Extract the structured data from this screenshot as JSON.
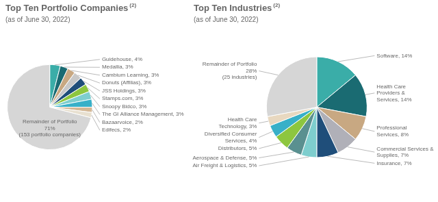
{
  "chart_data": [
    {
      "type": "pie",
      "title": "Top Ten Portfolio Companies",
      "title_superscript": "(2)",
      "subtitle": "(as of June 30, 2022)",
      "categories": [
        "Guidehouse, 4%",
        "Medallia, 3%",
        "Cambium Learning, 3%",
        "Donuts (Affilias), 3%",
        "JSS Holdings, 3%",
        "Stamps.com, 3%",
        "Snoopy Bidco, 3%",
        "The GI Alliance Management, 3%",
        "Bazaarvoice, 2%",
        "Edifecs, 2%",
        "Remainder of Portfolio\n71%\n(153 portfolio companies)"
      ],
      "values": [
        4,
        3,
        3,
        3,
        3,
        3,
        3,
        3,
        2,
        2,
        71
      ],
      "colors": [
        "#3aada8",
        "#1a6b72",
        "#c8a882",
        "#c8c8c8",
        "#1f4e7a",
        "#8dc63f",
        "#7ecece",
        "#38b0c8",
        "#d4b896",
        "#e8e0d0",
        "#d6d6d6"
      ],
      "data_labels": true
    },
    {
      "type": "pie",
      "title": "Top Ten Industries",
      "title_superscript": "(2)",
      "subtitle": "(as of June 30, 2022)",
      "categories": [
        "Software, 14%",
        "Health Care\nProviders &\nServices, 14%",
        "Professional\nServices, 8%",
        "Commercial Services &\nSupplies, 7%",
        "Insurance, 7%",
        "Air Freight & Logistics, 5%",
        "Aerospace & Defense, 5%",
        "Distributors, 5%",
        "Diversified Consumer\nServices, 4%",
        "Health Care\nTechnology, 3%",
        "Remainder of Portfolio\n28%\n(25 industries)"
      ],
      "values": [
        14,
        14,
        8,
        7,
        7,
        5,
        5,
        5,
        4,
        3,
        28
      ],
      "colors": [
        "#3aada8",
        "#1a6b72",
        "#c8a882",
        "#b0b0b8",
        "#1f4e7a",
        "#7ecece",
        "#5a9090",
        "#8dc63f",
        "#38b0c8",
        "#e8d8c0",
        "#d6d6d6"
      ],
      "data_labels": true
    }
  ]
}
